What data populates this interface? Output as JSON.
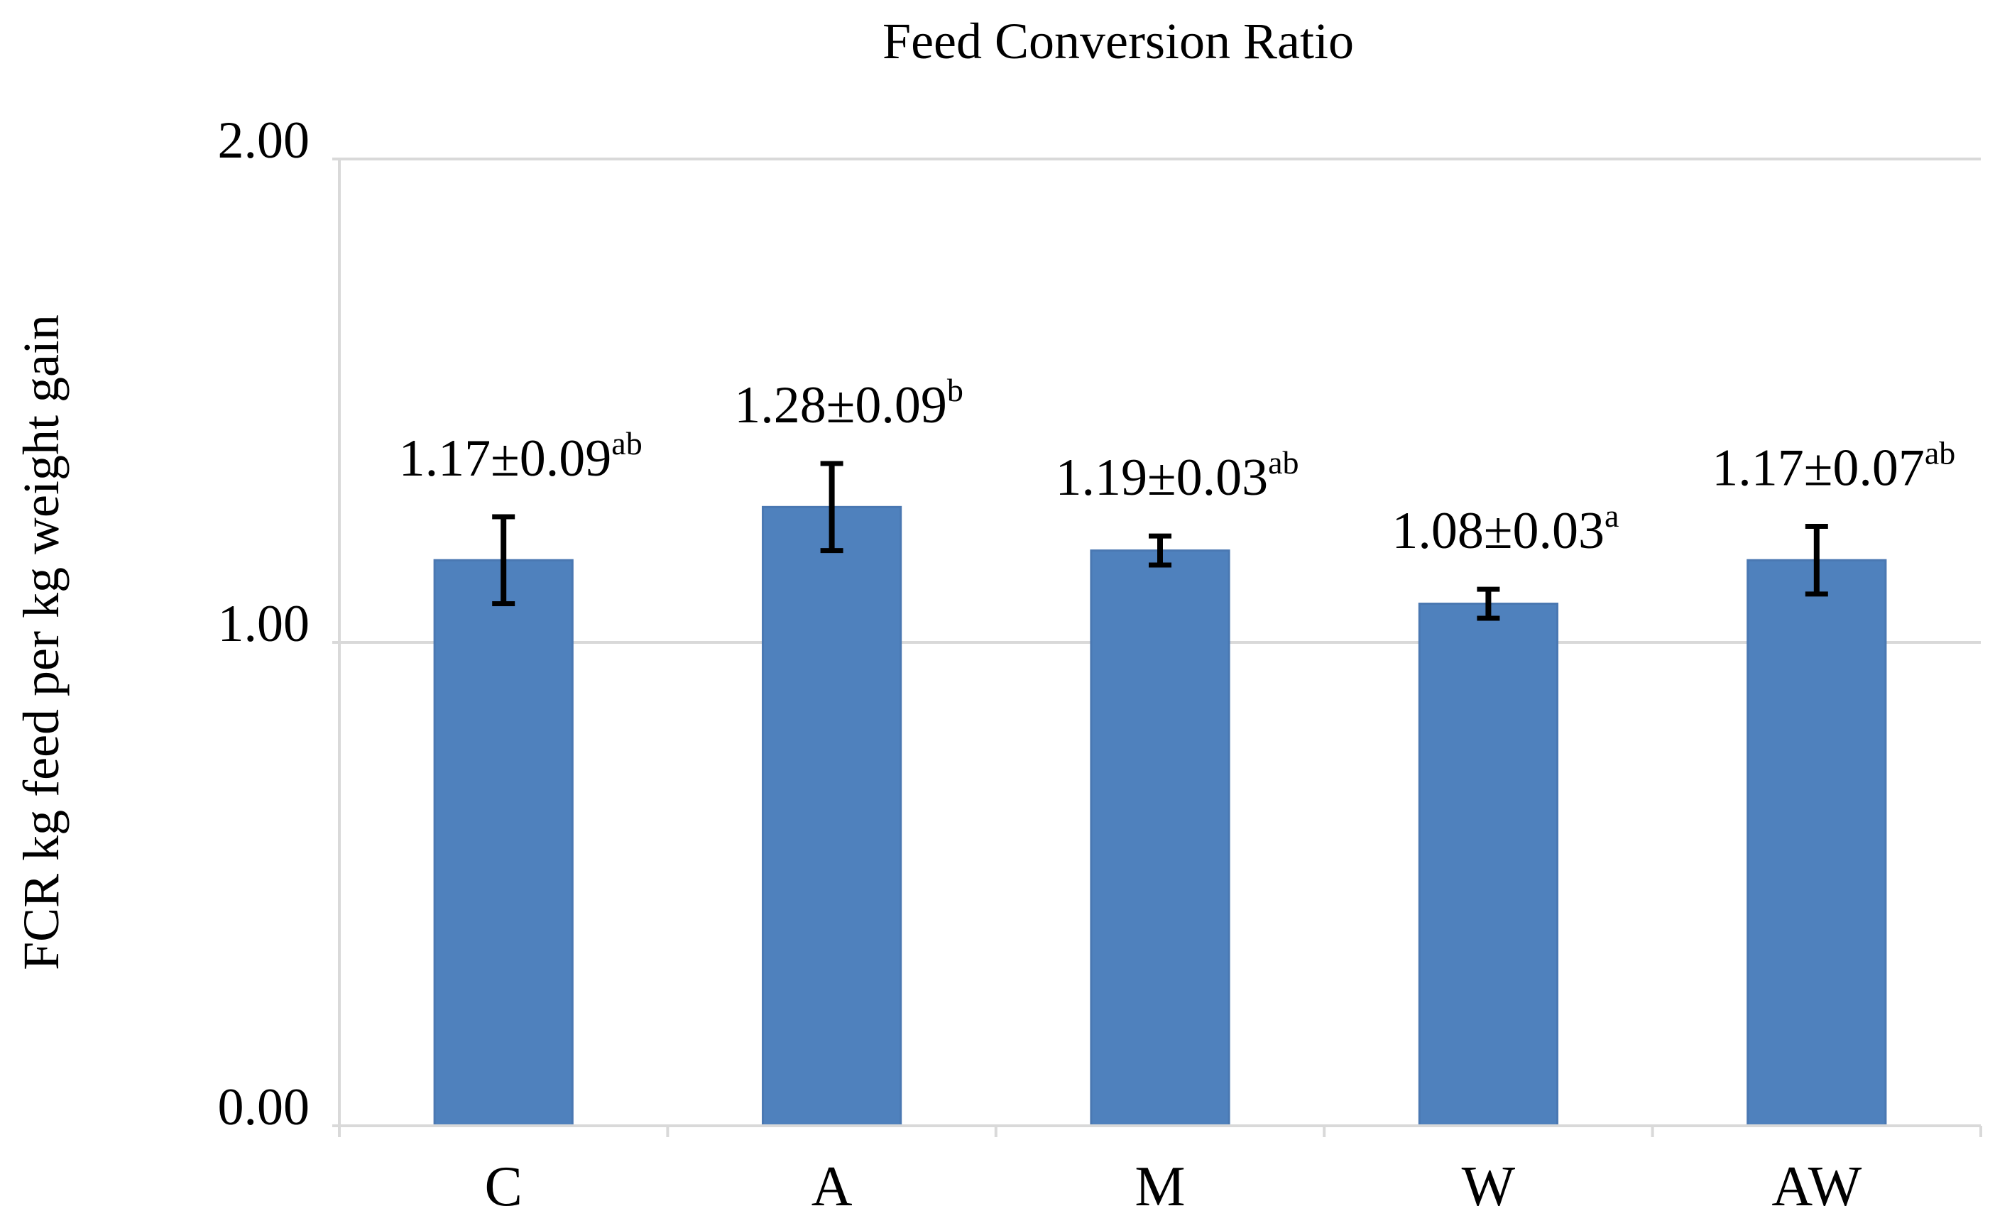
{
  "chart_data": {
    "type": "bar",
    "title": "Feed Conversion Ratio",
    "xlabel": "",
    "ylabel": "FCR kg feed per kg weight gain",
    "ylim": [
      0,
      2
    ],
    "y_ticks": [
      "0.00",
      "1.00",
      "2.00"
    ],
    "y_tick_values": [
      0,
      1,
      2
    ],
    "grid": true,
    "bar_color": "#4f81bd",
    "categories": [
      "C",
      "A",
      "M",
      "W",
      "AW"
    ],
    "values": [
      1.17,
      1.28,
      1.19,
      1.08,
      1.17
    ],
    "errors": [
      0.09,
      0.09,
      0.03,
      0.03,
      0.07
    ],
    "data_labels": [
      {
        "text": "1.17±0.09",
        "sup": "ab"
      },
      {
        "text": "1.28±0.09",
        "sup": "b"
      },
      {
        "text": "1.19±0.03",
        "sup": "ab"
      },
      {
        "text": "1.08±0.03",
        "sup": "a"
      },
      {
        "text": "1.17±0.07",
        "sup": "ab"
      }
    ]
  }
}
